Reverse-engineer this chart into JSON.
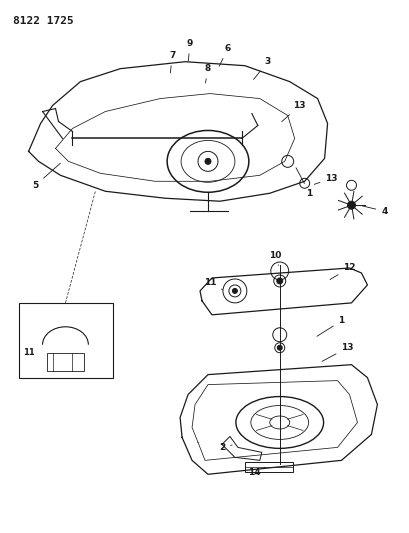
{
  "title_text": "8122 1725",
  "bg_color": "#ffffff",
  "line_color": "#1a1a1a",
  "label_color": "#1a1a1a",
  "fig_width": 4.1,
  "fig_height": 5.33,
  "dpi": 100
}
